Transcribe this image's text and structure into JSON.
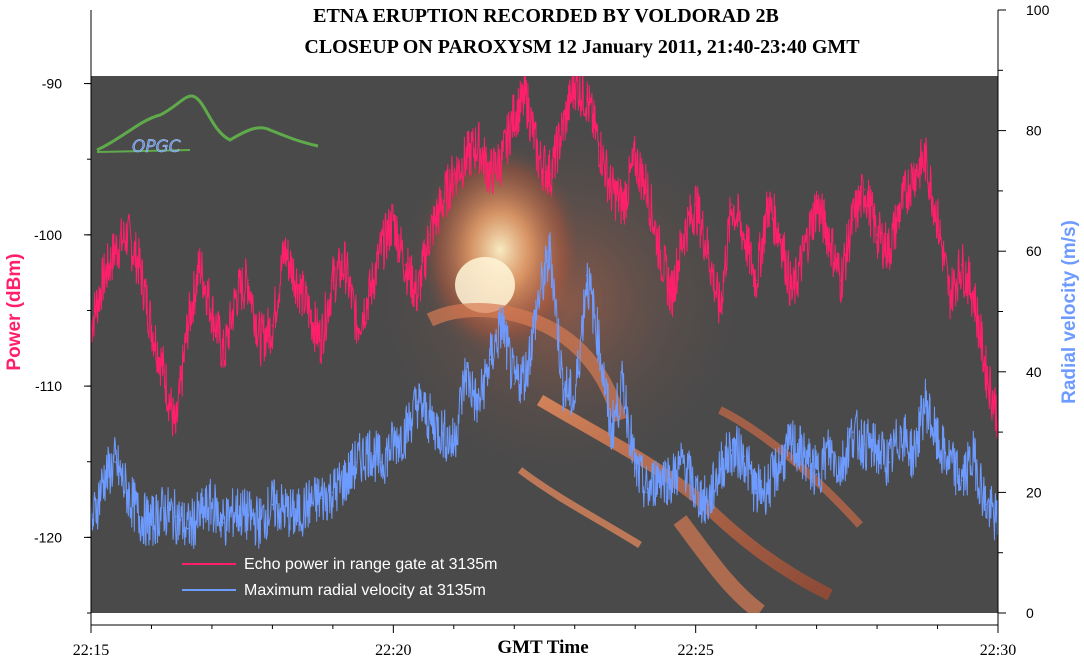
{
  "chart_data": {
    "type": "line",
    "title_line1": "ETNA ERUPTION  RECORDED BY VOLDORAD 2B",
    "title_line2": "CLOSEUP ON PAROXYSM 12 January 2011, 21:40-23:40 GMT",
    "xlabel": "GMT Time",
    "ylabel_left": "Power (dBm)",
    "ylabel_right": "Radial velocity (m/s)",
    "x_ticks": [
      "22:15",
      "22:20",
      "22:25",
      "22:30"
    ],
    "x_range_minutes": [
      0,
      15
    ],
    "y_left_ticks": [
      "-90",
      "-100",
      "-110",
      "-120"
    ],
    "y_left_range": [
      -125,
      -89.5
    ],
    "y_right_ticks": [
      "0",
      "20",
      "40",
      "60",
      "80",
      "100"
    ],
    "y_right_range": [
      0,
      100
    ],
    "colors": {
      "power": "#ff1f6b",
      "velocity": "#6e9bff",
      "left_axis_label": "#ff1f6b",
      "right_axis_label": "#6e9bff",
      "plot_background": "#4a4a4a"
    },
    "series": [
      {
        "name": "Echo power in range gate at 3135m",
        "axis": "left",
        "x_minutes": [
          0,
          0.2,
          0.4,
          0.6,
          0.8,
          1.0,
          1.2,
          1.4,
          1.6,
          1.8,
          2.0,
          2.2,
          2.4,
          2.6,
          2.8,
          3.0,
          3.2,
          3.4,
          3.6,
          3.8,
          4.0,
          4.2,
          4.4,
          4.6,
          4.8,
          5.0,
          5.2,
          5.4,
          5.6,
          5.8,
          6.0,
          6.2,
          6.4,
          6.6,
          6.8,
          7.0,
          7.2,
          7.4,
          7.6,
          7.8,
          8.0,
          8.2,
          8.4,
          8.6,
          8.8,
          9.0,
          9.2,
          9.4,
          9.6,
          9.8,
          10.0,
          10.2,
          10.4,
          10.6,
          10.8,
          11.0,
          11.2,
          11.4,
          11.6,
          11.8,
          12.0,
          12.2,
          12.4,
          12.6,
          12.8,
          13.0,
          13.2,
          13.4,
          13.6,
          13.8,
          14.0,
          14.2,
          14.4,
          14.6,
          14.8,
          15.0
        ],
        "values": [
          -106,
          -103,
          -101,
          -100,
          -102,
          -106,
          -109,
          -113,
          -106,
          -102,
          -105,
          -108,
          -104,
          -103,
          -107,
          -106,
          -101,
          -103,
          -105,
          -107,
          -103,
          -102,
          -106,
          -104,
          -101,
          -99,
          -102,
          -104,
          -100,
          -98,
          -96,
          -95,
          -94,
          -96,
          -95,
          -92,
          -91,
          -95,
          -96,
          -93,
          -90,
          -91,
          -94,
          -97,
          -98,
          -95,
          -97,
          -101,
          -104,
          -100,
          -98,
          -101,
          -105,
          -98,
          -100,
          -103,
          -98,
          -100,
          -104,
          -101,
          -98,
          -100,
          -103,
          -99,
          -97,
          -100,
          -101,
          -98,
          -96,
          -95,
          -99,
          -104,
          -102,
          -104,
          -109,
          -112
        ],
        "style": "noisy-line"
      },
      {
        "name": "Maximum radial velocity at 3135m",
        "axis": "right",
        "x_minutes": [
          0,
          0.2,
          0.4,
          0.6,
          0.8,
          1.0,
          1.2,
          1.4,
          1.6,
          1.8,
          2.0,
          2.2,
          2.4,
          2.6,
          2.8,
          3.0,
          3.2,
          3.4,
          3.6,
          3.8,
          4.0,
          4.2,
          4.4,
          4.6,
          4.8,
          5.0,
          5.2,
          5.4,
          5.6,
          5.8,
          6.0,
          6.2,
          6.4,
          6.6,
          6.8,
          7.0,
          7.2,
          7.4,
          7.6,
          7.8,
          8.0,
          8.2,
          8.4,
          8.6,
          8.8,
          9.0,
          9.2,
          9.4,
          9.6,
          9.8,
          10.0,
          10.2,
          10.4,
          10.6,
          10.8,
          11.0,
          11.2,
          11.4,
          11.6,
          11.8,
          12.0,
          12.2,
          12.4,
          12.6,
          12.8,
          13.0,
          13.2,
          13.4,
          13.6,
          13.8,
          14.0,
          14.2,
          14.4,
          14.6,
          14.8,
          15.0
        ],
        "values": [
          14,
          22,
          25,
          20,
          16,
          15,
          17,
          16,
          14,
          16,
          18,
          15,
          17,
          16,
          15,
          18,
          17,
          16,
          18,
          19,
          20,
          22,
          25,
          27,
          25,
          28,
          30,
          35,
          32,
          30,
          28,
          40,
          34,
          42,
          48,
          38,
          40,
          52,
          60,
          38,
          35,
          56,
          45,
          30,
          38,
          24,
          20,
          23,
          22,
          25,
          20,
          18,
          24,
          27,
          26,
          20,
          21,
          25,
          28,
          26,
          23,
          27,
          24,
          30,
          28,
          27,
          25,
          30,
          26,
          35,
          28,
          25,
          22,
          26,
          18,
          15
        ],
        "style": "noisy-line"
      }
    ],
    "legend": [
      {
        "label": "Echo power in range gate at 3135m",
        "color": "#ff1f6b"
      },
      {
        "label": "Maximum radial velocity at 3135m",
        "color": "#6e9bff"
      }
    ],
    "legend_position": "bottom-left",
    "grid": false
  },
  "logo": {
    "text": "OPGC",
    "color": "#5a8fe0",
    "stroke_color": "#5faa4a"
  }
}
